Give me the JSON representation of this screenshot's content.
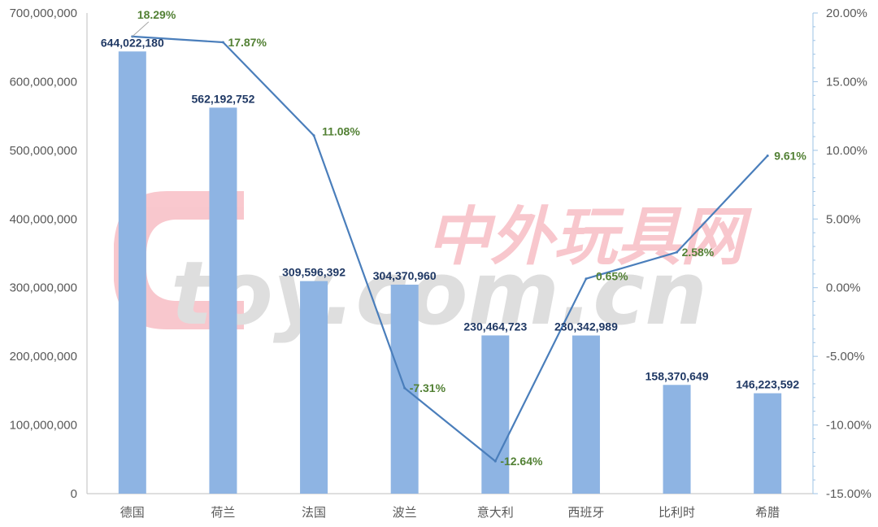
{
  "chart_data": {
    "type": "bar",
    "categories": [
      "德国",
      "荷兰",
      "法国",
      "波兰",
      "意大利",
      "西班牙",
      "比利时",
      "希腊"
    ],
    "series": [
      {
        "type": "bar",
        "values": [
          644022180,
          562192752,
          309596392,
          304370960,
          230464723,
          230342989,
          158370649,
          146223592
        ],
        "labels": [
          "644,022,180",
          "562,192,752",
          "309,596,392",
          "304,370,960",
          "230,464,723",
          "230,342,989",
          "158,370,649",
          "146,223,592"
        ],
        "color": "#8eb4e3",
        "axis": "left"
      },
      {
        "type": "line",
        "values": [
          18.29,
          17.87,
          11.08,
          -7.31,
          -12.64,
          0.65,
          2.58,
          9.61
        ],
        "labels": [
          "18.29%",
          "17.87%",
          "11.08%",
          "-7.31%",
          "-12.64%",
          "0.65%",
          "2.58%",
          "9.61%"
        ],
        "color": "#4a7ebb",
        "axis": "right"
      }
    ],
    "y_left": {
      "range": [
        0,
        700000000
      ],
      "ticks": [
        "0",
        "100,000,000",
        "200,000,000",
        "300,000,000",
        "400,000,000",
        "500,000,000",
        "600,000,000",
        "700,000,000"
      ]
    },
    "y_right": {
      "range": [
        -15,
        20
      ],
      "ticks": [
        "-15.00%",
        "-10.00%",
        "-5.00%",
        "0.00%",
        "5.00%",
        "10.00%",
        "15.00%",
        "20.00%"
      ]
    },
    "grid": false,
    "label_color_bar": "#1f3864",
    "label_color_line": "#538135"
  },
  "watermark": {
    "latin": "toy.com.cn",
    "chinese": "中外玩具网",
    "color_red": "#e8384f",
    "color_gray": "#8c8c8c"
  }
}
